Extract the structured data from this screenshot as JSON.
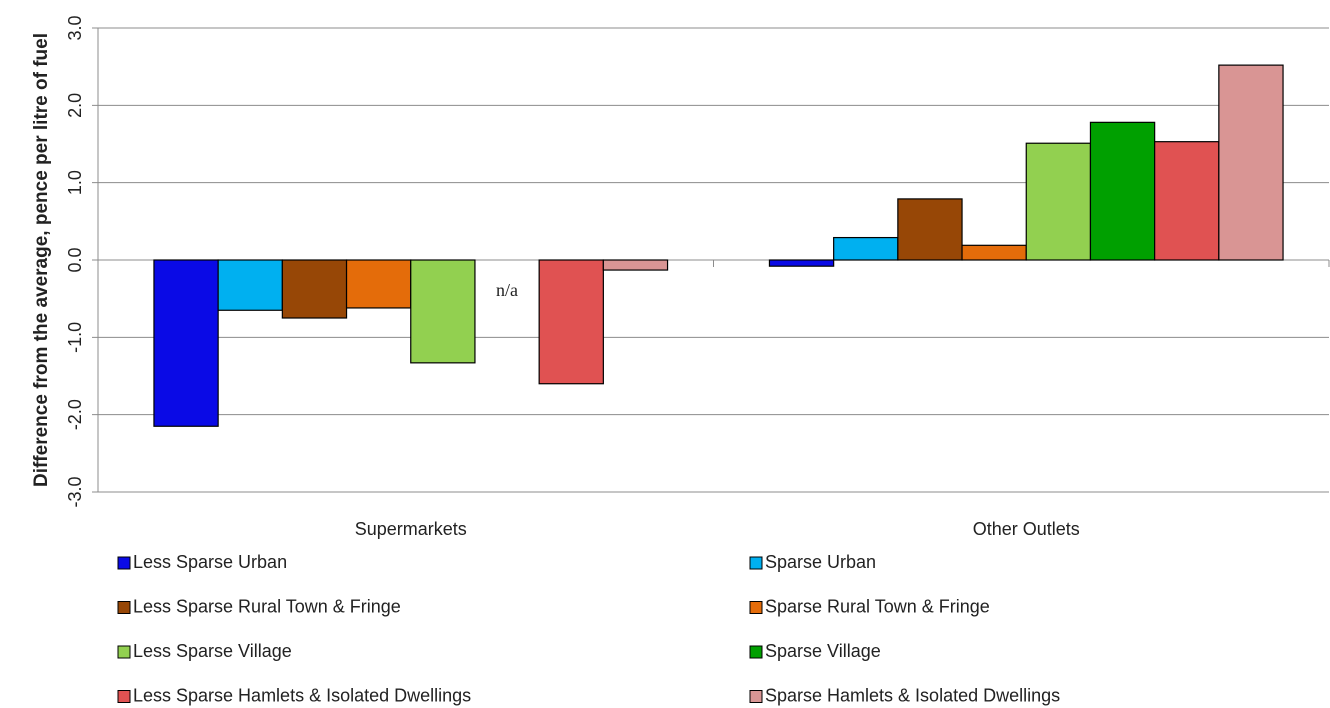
{
  "chart_data": {
    "type": "bar",
    "y_label": "Difference from the average, pence per litre of fuel",
    "categories": [
      "Supermarkets",
      "Other Outlets"
    ],
    "series": [
      {
        "name": "Less Sparse Urban",
        "color": "#0a0ae6",
        "values": [
          -2.15,
          -0.08
        ]
      },
      {
        "name": "Sparse Urban",
        "color": "#00b0f0",
        "values": [
          -0.65,
          0.29
        ]
      },
      {
        "name": "Less Sparse Rural Town & Fringe",
        "color": "#974706",
        "values": [
          -0.75,
          0.79
        ]
      },
      {
        "name": "Sparse Rural Town & Fringe",
        "color": "#e46c0a",
        "values": [
          -0.62,
          0.19
        ]
      },
      {
        "name": "Less Sparse Village",
        "color": "#92d050",
        "values": [
          -1.33,
          1.51
        ]
      },
      {
        "name": "Sparse Village",
        "color": "#00a000",
        "values": [
          null,
          1.78
        ]
      },
      {
        "name": "Less Sparse Hamlets & Isolated Dwellings",
        "color": "#e05252",
        "values": [
          -1.6,
          1.53
        ]
      },
      {
        "name": "Sparse Hamlets & Isolated Dwellings",
        "color": "#d99594",
        "values": [
          -0.13,
          2.52
        ]
      }
    ],
    "annotation": "n/a",
    "ylim": [
      -3,
      3
    ],
    "yticks": [
      {
        "value": -3,
        "label": "-3.0"
      },
      {
        "value": -2,
        "label": "-2.0"
      },
      {
        "value": -1,
        "label": "-1.0"
      },
      {
        "value": 0,
        "label": "0.0"
      },
      {
        "value": 1,
        "label": "1.0"
      },
      {
        "value": 2,
        "label": "2.0"
      },
      {
        "value": 3,
        "label": "3.0"
      }
    ],
    "grid": true,
    "legend": "bottom"
  }
}
